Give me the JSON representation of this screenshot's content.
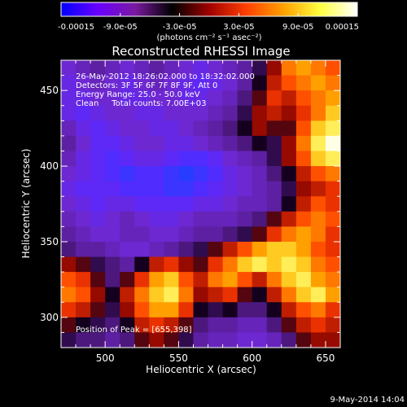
{
  "colorbar": {
    "tick_labels": [
      "-0.00015",
      "-9.0e-05",
      "-3.0e-05",
      "3.0e-05",
      "9.0e-05",
      "0.00015"
    ],
    "tick_values": [
      -0.00015,
      -9e-05,
      -3e-05,
      3e-05,
      9e-05,
      0.00015
    ],
    "range": [
      -0.00015,
      0.00015
    ],
    "units_label": "(photons cm⁻² s⁻¹ asec⁻²)",
    "colors": [
      "#0000ff",
      "#6a00ff",
      "#7a1aa0",
      "#000000",
      "#a00000",
      "#ff4000",
      "#ffa000",
      "#ffff40",
      "#ffffff"
    ]
  },
  "chart_data": {
    "type": "heatmap",
    "title": "Reconstructed RHESSI Image",
    "xlabel": "Heliocentric X (arcsec)",
    "ylabel": "Heliocentric Y (arcsec)",
    "xlim": [
      470,
      660
    ],
    "ylim": [
      280,
      470
    ],
    "xticks": [
      500,
      550,
      600,
      650
    ],
    "yticks": [
      300,
      350,
      400,
      450
    ],
    "annotations": [
      "26-May-2012 18:26:02.000 to 18:32:02.000",
      "Detectors: 3F 5F 6F 7F 8F 9F, Att 0",
      "Energy Range: 25.0 - 50.0 keV",
      "Clean     Total counts: 7.00E+03"
    ],
    "peak_label": "Position of Peak = [655,398]",
    "peak": [
      655,
      398
    ],
    "grid": {
      "nx": 19,
      "ny": 19,
      "x_range": [
        470,
        660
      ],
      "y_range": [
        280,
        470
      ],
      "z_range": [
        -1,
        1
      ],
      "rows_top_to_bottom": [
        [
          -0.5,
          -0.4,
          -0.3,
          -0.4,
          -0.5,
          -0.4,
          -0.3,
          -0.4,
          -0.5,
          -0.6,
          -0.5,
          -0.4,
          -0.3,
          -0.1,
          0.2,
          0.6,
          0.7,
          0.6,
          0.5
        ],
        [
          -0.6,
          -0.5,
          -0.4,
          -0.5,
          -0.6,
          -0.5,
          -0.4,
          -0.5,
          -0.6,
          -0.7,
          -0.6,
          -0.5,
          -0.3,
          0.0,
          0.3,
          0.5,
          0.6,
          0.7,
          0.6
        ],
        [
          -0.6,
          -0.6,
          -0.5,
          -0.5,
          -0.6,
          -0.6,
          -0.5,
          -0.5,
          -0.6,
          -0.6,
          -0.5,
          -0.4,
          -0.2,
          0.1,
          0.4,
          0.3,
          0.5,
          0.6,
          0.7
        ],
        [
          -0.6,
          -0.7,
          -0.6,
          -0.5,
          -0.5,
          -0.6,
          -0.6,
          -0.5,
          -0.5,
          -0.5,
          -0.4,
          -0.3,
          -0.1,
          0.2,
          0.3,
          0.2,
          0.4,
          0.6,
          0.8
        ],
        [
          -0.4,
          -0.6,
          -0.7,
          -0.6,
          -0.5,
          -0.5,
          -0.6,
          -0.6,
          -0.5,
          -0.4,
          -0.3,
          -0.2,
          0.0,
          0.2,
          0.1,
          0.1,
          0.5,
          0.8,
          0.9
        ],
        [
          -0.3,
          -0.5,
          -0.7,
          -0.7,
          -0.6,
          -0.5,
          -0.5,
          -0.6,
          -0.6,
          -0.5,
          -0.4,
          -0.3,
          -0.2,
          0.0,
          -0.1,
          0.2,
          0.6,
          0.9,
          1.0
        ],
        [
          -0.4,
          -0.6,
          -0.7,
          -0.8,
          -0.7,
          -0.6,
          -0.6,
          -0.7,
          -0.8,
          -0.8,
          -0.7,
          -0.5,
          -0.4,
          -0.3,
          -0.1,
          0.2,
          0.5,
          0.8,
          0.9
        ],
        [
          -0.5,
          -0.6,
          -0.7,
          -0.8,
          -0.9,
          -0.8,
          -0.8,
          -0.9,
          -1.0,
          -0.9,
          -0.8,
          -0.6,
          -0.5,
          -0.4,
          -0.2,
          0.0,
          0.3,
          0.5,
          0.6
        ],
        [
          -0.6,
          -0.7,
          -0.7,
          -0.7,
          -0.8,
          -0.8,
          -0.8,
          -0.9,
          -0.9,
          -0.8,
          -0.7,
          -0.6,
          -0.5,
          -0.4,
          -0.3,
          -0.1,
          0.2,
          0.3,
          0.4
        ],
        [
          -0.5,
          -0.6,
          -0.7,
          -0.6,
          -0.6,
          -0.7,
          -0.7,
          -0.7,
          -0.7,
          -0.6,
          -0.6,
          -0.5,
          -0.4,
          -0.4,
          -0.3,
          0.0,
          0.3,
          0.5,
          0.4
        ],
        [
          -0.4,
          -0.5,
          -0.6,
          -0.5,
          -0.4,
          -0.5,
          -0.6,
          -0.6,
          -0.5,
          -0.4,
          -0.4,
          -0.4,
          -0.3,
          -0.2,
          0.1,
          0.3,
          0.5,
          0.6,
          0.5
        ],
        [
          -0.3,
          -0.4,
          -0.5,
          -0.5,
          -0.4,
          -0.4,
          -0.5,
          -0.5,
          -0.4,
          -0.3,
          -0.3,
          -0.2,
          -0.1,
          0.1,
          0.4,
          0.6,
          0.7,
          0.6,
          0.4
        ],
        [
          -0.2,
          -0.3,
          -0.3,
          -0.4,
          -0.5,
          -0.5,
          -0.4,
          -0.3,
          -0.2,
          -0.1,
          0.1,
          0.3,
          0.5,
          0.7,
          0.8,
          0.8,
          0.7,
          0.5,
          0.4
        ],
        [
          0.2,
          0.1,
          -0.1,
          -0.2,
          -0.3,
          0.0,
          0.3,
          0.4,
          0.2,
          0.1,
          0.4,
          0.6,
          0.8,
          0.9,
          0.8,
          0.9,
          0.8,
          0.6,
          0.5
        ],
        [
          0.5,
          0.4,
          0.1,
          -0.2,
          0.1,
          0.4,
          0.7,
          0.8,
          0.5,
          0.3,
          0.6,
          0.7,
          0.5,
          0.3,
          0.6,
          0.8,
          0.9,
          0.7,
          0.6
        ],
        [
          0.6,
          0.5,
          0.2,
          0.0,
          0.3,
          0.6,
          0.8,
          0.9,
          0.6,
          0.2,
          0.3,
          0.4,
          0.1,
          0.0,
          0.3,
          0.6,
          0.8,
          0.9,
          0.7
        ],
        [
          0.4,
          0.3,
          0.1,
          -0.1,
          0.2,
          0.5,
          0.7,
          0.7,
          0.4,
          0.0,
          -0.1,
          0.0,
          -0.2,
          -0.2,
          0.0,
          0.3,
          0.5,
          0.6,
          0.4
        ],
        [
          0.1,
          0.0,
          -0.1,
          -0.2,
          0.0,
          0.3,
          0.4,
          0.3,
          0.1,
          -0.2,
          -0.3,
          -0.3,
          -0.4,
          -0.4,
          -0.2,
          0.1,
          0.3,
          0.4,
          0.3
        ],
        [
          -0.1,
          -0.2,
          -0.2,
          -0.3,
          -0.2,
          0.1,
          0.2,
          0.1,
          -0.1,
          -0.3,
          -0.4,
          -0.4,
          -0.5,
          -0.5,
          -0.4,
          -0.2,
          0.1,
          0.2,
          0.2
        ]
      ]
    }
  },
  "footer": {
    "timestamp": "9-May-2014 14:04"
  }
}
